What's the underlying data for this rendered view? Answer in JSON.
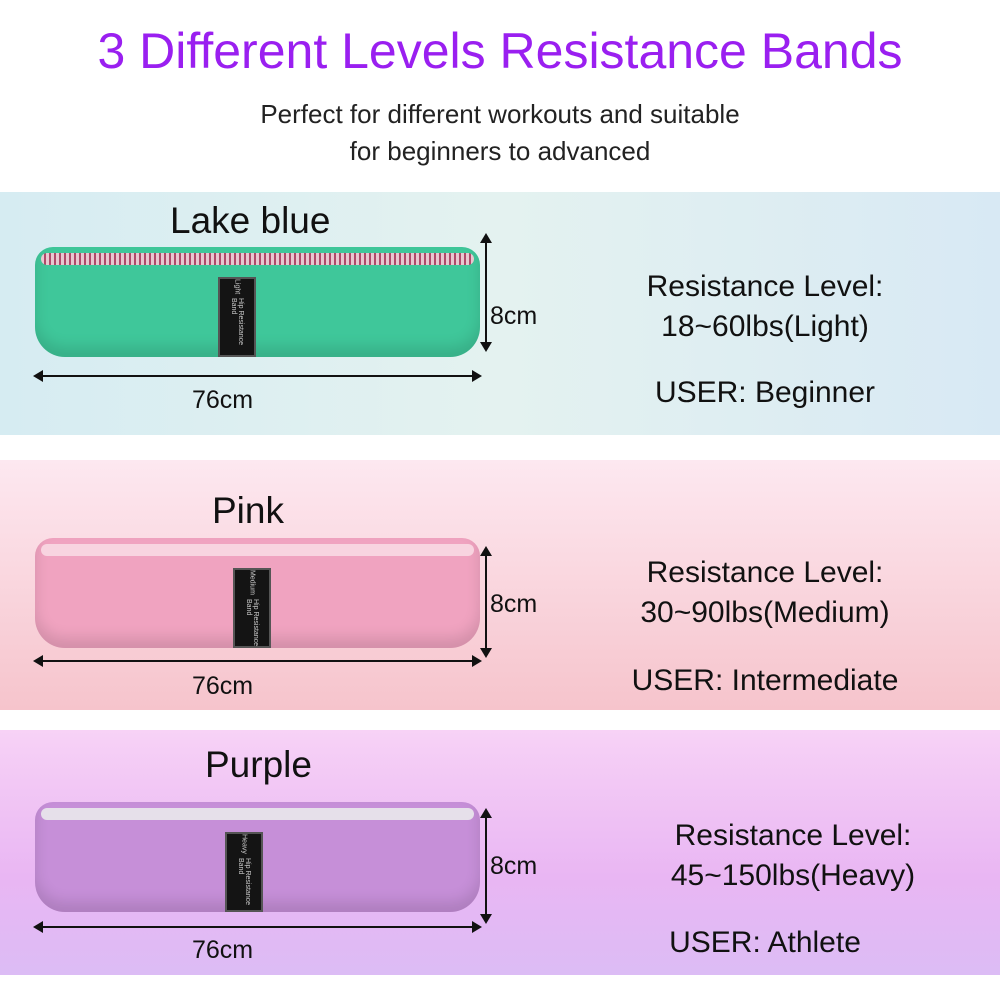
{
  "header": {
    "title": "3 Different Levels Resistance Bands",
    "subtitle_line1": "Perfect for different workouts and suitable",
    "subtitle_line2": "for beginners to advanced"
  },
  "bands": [
    {
      "name": "Lake blue",
      "height": "8cm",
      "length": "76cm",
      "resistance_label": "Resistance Level:",
      "resistance": "18~60lbs(Light)",
      "user": "USER: Beginner",
      "tag_level": "Light",
      "tag_text": "Hip Resistance Band",
      "color": "#3fc79a"
    },
    {
      "name": "Pink",
      "height": "8cm",
      "length": "76cm",
      "resistance_label": "Resistance Level:",
      "resistance": "30~90lbs(Medium)",
      "user": "USER: Intermediate",
      "tag_level": "Medium",
      "tag_text": "Hip Resistance Band",
      "color": "#f0a3c0"
    },
    {
      "name": "Purple",
      "height": "8cm",
      "length": "76cm",
      "resistance_label": "Resistance Level:",
      "resistance": "45~150lbs(Heavy)",
      "user": "USER: Athlete",
      "tag_level": "Heavy",
      "tag_text": "Hip Resistance Band",
      "color": "#c68fd8"
    }
  ],
  "colors": {
    "title": "#9a1ff0"
  }
}
